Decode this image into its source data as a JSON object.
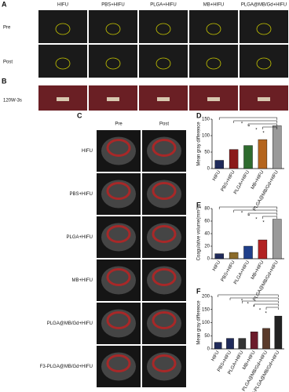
{
  "figure": {
    "panel_labels": [
      "A",
      "B",
      "C",
      "D",
      "E",
      "F"
    ],
    "panel_a": {
      "columns": [
        "HIFU",
        "PBS+HIFU",
        "PLGA+HIFU",
        "MB+HIFU",
        "PLGA@MB/Gd+HIFU"
      ],
      "rows": [
        "Pre",
        "Post"
      ]
    },
    "panel_b": {
      "row_label": "120W-3s"
    },
    "panel_c": {
      "columns": [
        "Pre",
        "Post"
      ],
      "rows": [
        "HIFU",
        "PBS+HIFU",
        "PLGA+HIFU",
        "MB+HIFU",
        "PLGA@MB/Gd+HIFU",
        "F3-PLGA@MB/Gd+HIFU"
      ]
    }
  },
  "chart_data": [
    {
      "type": "bar",
      "ylabel": "Mean gray difference",
      "categories": [
        "HIFU",
        "PBS+HIFU",
        "PLGA+HIFU",
        "MB+HIFU",
        "PLGA@MB/Gd+HIFU"
      ],
      "values": [
        25,
        58,
        70,
        88,
        130
      ],
      "colors": [
        "#1f2a5a",
        "#8b1a1a",
        "#2e6b2e",
        "#b5651d",
        "#9a9a9a"
      ],
      "ylim": [
        0,
        150
      ],
      "yticks": [
        0,
        50,
        100,
        150
      ],
      "significance": "*"
    },
    {
      "type": "bar",
      "ylabel": "Coagulative volume(mm³)",
      "categories": [
        "HIFU",
        "PBS+HIFU",
        "PLGA+HIFU",
        "MB+HIFU",
        "PLGA@MB/Gd+HIFU"
      ],
      "values": [
        8,
        10,
        20,
        30,
        63
      ],
      "colors": [
        "#1f2a5a",
        "#8b6b2a",
        "#1f3f8a",
        "#b22222",
        "#9a9a9a"
      ],
      "ylim": [
        0,
        80
      ],
      "yticks": [
        0,
        20,
        40,
        60,
        80
      ],
      "significance": "*"
    },
    {
      "type": "bar",
      "ylabel": "Mean gray difference",
      "categories": [
        "HIFU",
        "PBS+HIFU",
        "PLGA+HIFU",
        "MB+HIFU",
        "PLGA@MB/Gd+HIFU",
        "F3-PLGA@MB/Gd+HIFU"
      ],
      "values": [
        25,
        40,
        40,
        65,
        78,
        125
      ],
      "colors": [
        "#1f2a5a",
        "#1f2a5a",
        "#333333",
        "#6b1a2a",
        "#5a3a2a",
        "#222222"
      ],
      "ylim": [
        0,
        200
      ],
      "yticks": [
        0,
        50,
        100,
        150,
        200
      ],
      "significance": "*"
    }
  ]
}
